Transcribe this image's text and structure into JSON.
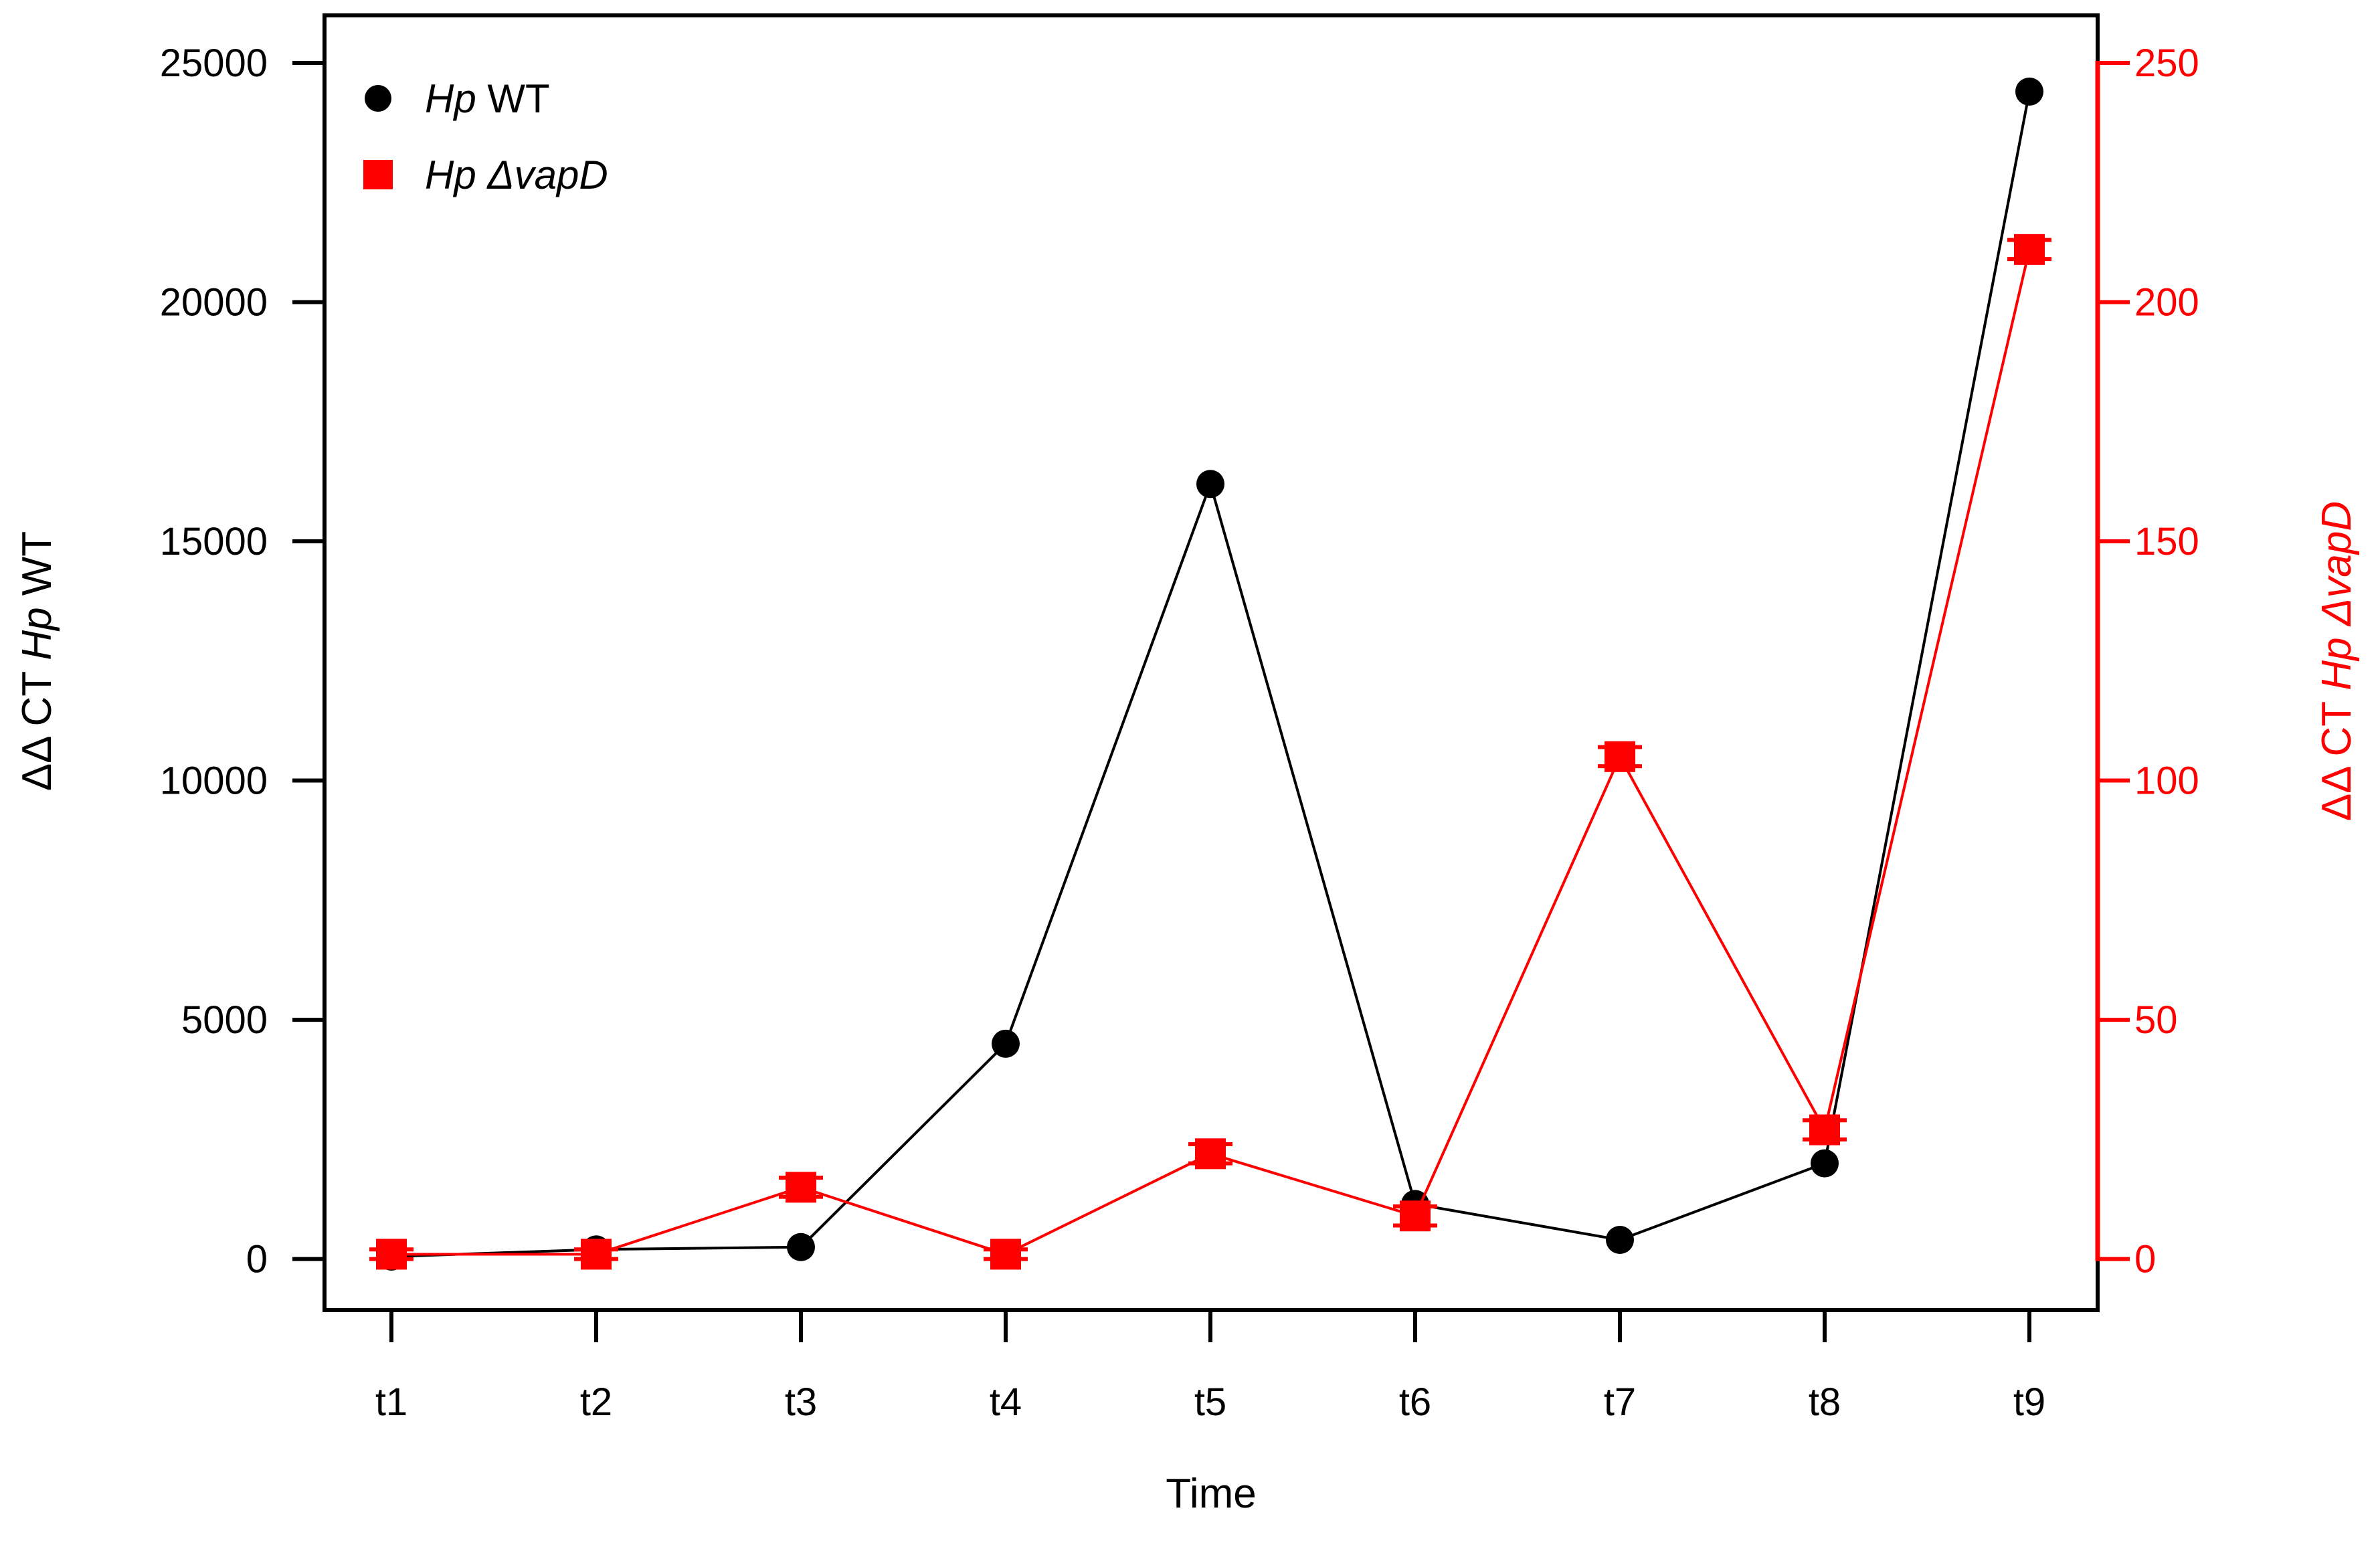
{
  "chart_data": {
    "type": "line",
    "title": "",
    "categories": [
      "t1",
      "t2",
      "t3",
      "t4",
      "t5",
      "t6",
      "t7",
      "t8",
      "t9"
    ],
    "xlabel": "Time",
    "grid": false,
    "legend_position": "top-left",
    "left_axis": {
      "label": "ΔΔ CT Hp WT",
      "label_parts": [
        {
          "t": "ΔΔ CT ",
          "i": false
        },
        {
          "t": "Hp",
          "i": true
        },
        {
          "t": " WT",
          "i": false
        }
      ],
      "ticks": [
        "0",
        "5000",
        "10000",
        "15000",
        "20000",
        "25000"
      ],
      "tick_values": [
        0,
        5000,
        10000,
        15000,
        20000,
        25000
      ],
      "range": [
        0,
        25000
      ],
      "color": "#000000"
    },
    "right_axis": {
      "label": "ΔΔ CT Hp ΔvapD",
      "label_parts": [
        {
          "t": "ΔΔ CT ",
          "i": false
        },
        {
          "t": "Hp ΔvapD",
          "i": true
        }
      ],
      "ticks": [
        "0",
        "50",
        "100",
        "150",
        "200",
        "250"
      ],
      "tick_values": [
        0,
        50,
        100,
        150,
        200,
        250
      ],
      "range": [
        0,
        250
      ],
      "color": "#ff0000"
    },
    "series": [
      {
        "name": "Hp WT",
        "name_parts": [
          {
            "t": "Hp",
            "i": true
          },
          {
            "t": " WT",
            "i": false
          }
        ],
        "axis": "left",
        "color": "#000000",
        "marker": "circle",
        "values": [
          50,
          200,
          250,
          4500,
          16200,
          1150,
          400,
          2000,
          24400
        ]
      },
      {
        "name": "Hp ΔvapD",
        "name_parts": [
          {
            "t": "Hp ΔvapD",
            "i": true
          }
        ],
        "axis": "right",
        "color": "#ff0000",
        "marker": "square",
        "values": [
          1,
          1,
          15,
          1,
          22,
          9,
          105,
          27,
          211
        ],
        "errors": [
          1,
          1,
          2,
          1,
          2,
          2,
          2,
          2,
          2
        ]
      }
    ]
  }
}
